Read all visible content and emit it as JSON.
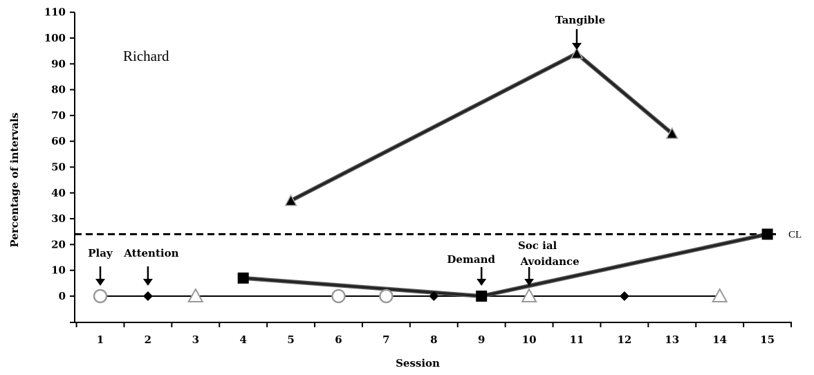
{
  "chart_data": {
    "type": "line",
    "subject_label": "Richard",
    "xlabel": "Session",
    "ylabel": "Percentage of intervals",
    "ylim": [
      -10,
      110
    ],
    "yticks": [
      0,
      10,
      20,
      30,
      40,
      50,
      60,
      70,
      80,
      90,
      100,
      110
    ],
    "x_positions": [
      1,
      2,
      3,
      4,
      5,
      6,
      7,
      8,
      9,
      10,
      11,
      12,
      13,
      14,
      15
    ],
    "x_tick_labels": [
      "1",
      "2",
      "3",
      "4",
      "5",
      "6",
      "7",
      "8",
      "9",
      "10",
      "11",
      "12",
      "13",
      "14",
      "15"
    ],
    "criterion_line": {
      "label": "CL",
      "value": 24
    },
    "series": [
      {
        "marker": "circle",
        "points": [
          [
            1,
            0
          ],
          [
            6,
            0
          ],
          [
            7,
            0
          ]
        ]
      },
      {
        "marker": "diamond",
        "points": [
          [
            2,
            0
          ],
          [
            8,
            0
          ],
          [
            12,
            0
          ]
        ]
      },
      {
        "marker": "triangle-open",
        "points": [
          [
            3,
            0
          ],
          [
            10,
            0
          ],
          [
            14,
            0
          ]
        ]
      },
      {
        "marker": "square",
        "points": [
          [
            4,
            7
          ],
          [
            9,
            0
          ],
          [
            15,
            24
          ]
        ]
      },
      {
        "marker": "triangle-filled",
        "points": [
          [
            5,
            37
          ],
          [
            11,
            94
          ],
          [
            13,
            63
          ]
        ]
      }
    ],
    "baseline_segment": {
      "from": 1,
      "to": 14,
      "value": 0
    },
    "annotations": [
      {
        "text": "Play",
        "x": 1
      },
      {
        "text": "Attention",
        "x": 2
      },
      {
        "text": "Demand",
        "x": 9
      },
      {
        "text": "Soc ial",
        "x": 10
      },
      {
        "text": "Avoidance",
        "x": 10
      },
      {
        "text": "Tangible",
        "x": 11
      }
    ]
  }
}
